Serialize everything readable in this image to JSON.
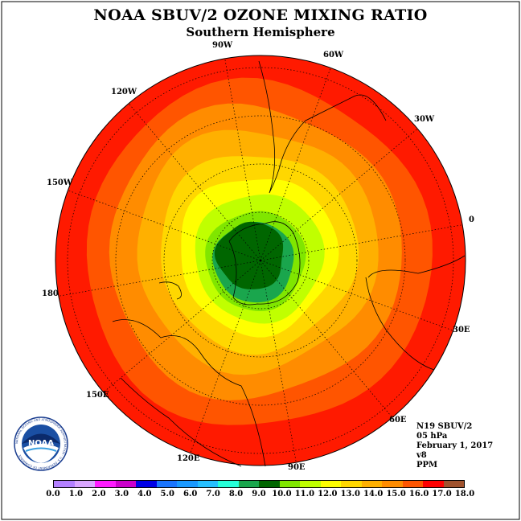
{
  "title": "NOAA SBUV/2 OZONE MIXING RATIO",
  "subtitle": "Southern Hemisphere",
  "longitude_labels": {
    "90W": "90W",
    "60W": "60W",
    "30W": "30W",
    "0": "0",
    "30E": "30E",
    "60E": "60E",
    "90E": "90E",
    "120E": "120E",
    "150E": "150E",
    "180": "180",
    "150W": "150W",
    "120W": "120W"
  },
  "info": {
    "instrument": "N19 SBUV/2",
    "level": "05 hPa",
    "date": "February 1, 2017",
    "version": "v8",
    "units": "PPM"
  },
  "logo": {
    "text": "NOAA",
    "ring_text": "NATIONAL OCEANIC AND ATMOSPHERIC ADMINISTRATION · U.S. DEPARTMENT OF COMMERCE"
  },
  "colorbar": {
    "colors": [
      "#b380ff",
      "#d9a6ff",
      "#ff1aff",
      "#cc00cc",
      "#0000e6",
      "#1a75ff",
      "#1a99ff",
      "#26bfff",
      "#26ffd9",
      "#1aa64d",
      "#006600",
      "#80e600",
      "#c0ff00",
      "#ffff00",
      "#ffd700",
      "#ffb000",
      "#ff8c00",
      "#ff5500",
      "#ff0000",
      "#a0522d"
    ],
    "tick_labels": [
      "0.0",
      "1.0",
      "2.0",
      "3.0",
      "4.0",
      "5.0",
      "6.0",
      "7.0",
      "8.0",
      "9.0",
      "10.0",
      "11.0",
      "12.0",
      "13.0",
      "14.0",
      "15.0",
      "16.0",
      "17.0",
      "18.0"
    ]
  },
  "map_colors": {
    "ring_16_17": "#ff1a00",
    "ring_15_16": "#ff5500",
    "ring_14_15": "#ff8c00",
    "ring_13_14": "#ffb000",
    "ring_12_13": "#ffd700",
    "ring_11_12": "#ffff00",
    "ring_10_11": "#c0ff00",
    "ring_9_10": "#80e600",
    "ring_8_9": "#1aa64d",
    "ring_lt8": "#006600"
  }
}
